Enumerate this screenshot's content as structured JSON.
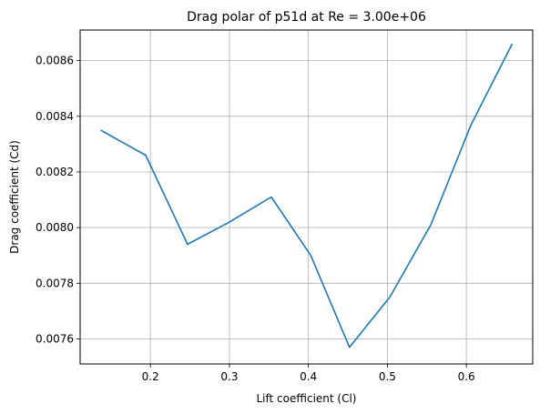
{
  "chart_data": {
    "type": "line",
    "title": "Drag polar of p51d at Re = 3.00e+06",
    "xlabel": "Lift coefficient (Cl)",
    "ylabel": "Drag coefficient (Cd)",
    "xlim": [
      0.111,
      0.684
    ],
    "ylim": [
      0.00751,
      0.00871
    ],
    "xticks": [
      0.2,
      0.3,
      0.4,
      0.5,
      0.6
    ],
    "xtick_labels": [
      "0.2",
      "0.3",
      "0.4",
      "0.5",
      "0.6"
    ],
    "yticks": [
      0.0076,
      0.0078,
      0.008,
      0.0082,
      0.0084,
      0.0086
    ],
    "ytick_labels": [
      "0.0076",
      "0.0078",
      "0.0080",
      "0.0082",
      "0.0084",
      "0.0086"
    ],
    "grid": true,
    "series": [
      {
        "color": "#1f77b4",
        "x": [
          0.137,
          0.194,
          0.247,
          0.3,
          0.353,
          0.403,
          0.452,
          0.503,
          0.555,
          0.606,
          0.658
        ],
        "y": [
          0.00835,
          0.00826,
          0.00794,
          0.00802,
          0.00811,
          0.0079,
          0.00757,
          0.00775,
          0.00801,
          0.00837,
          0.00866
        ]
      }
    ]
  }
}
